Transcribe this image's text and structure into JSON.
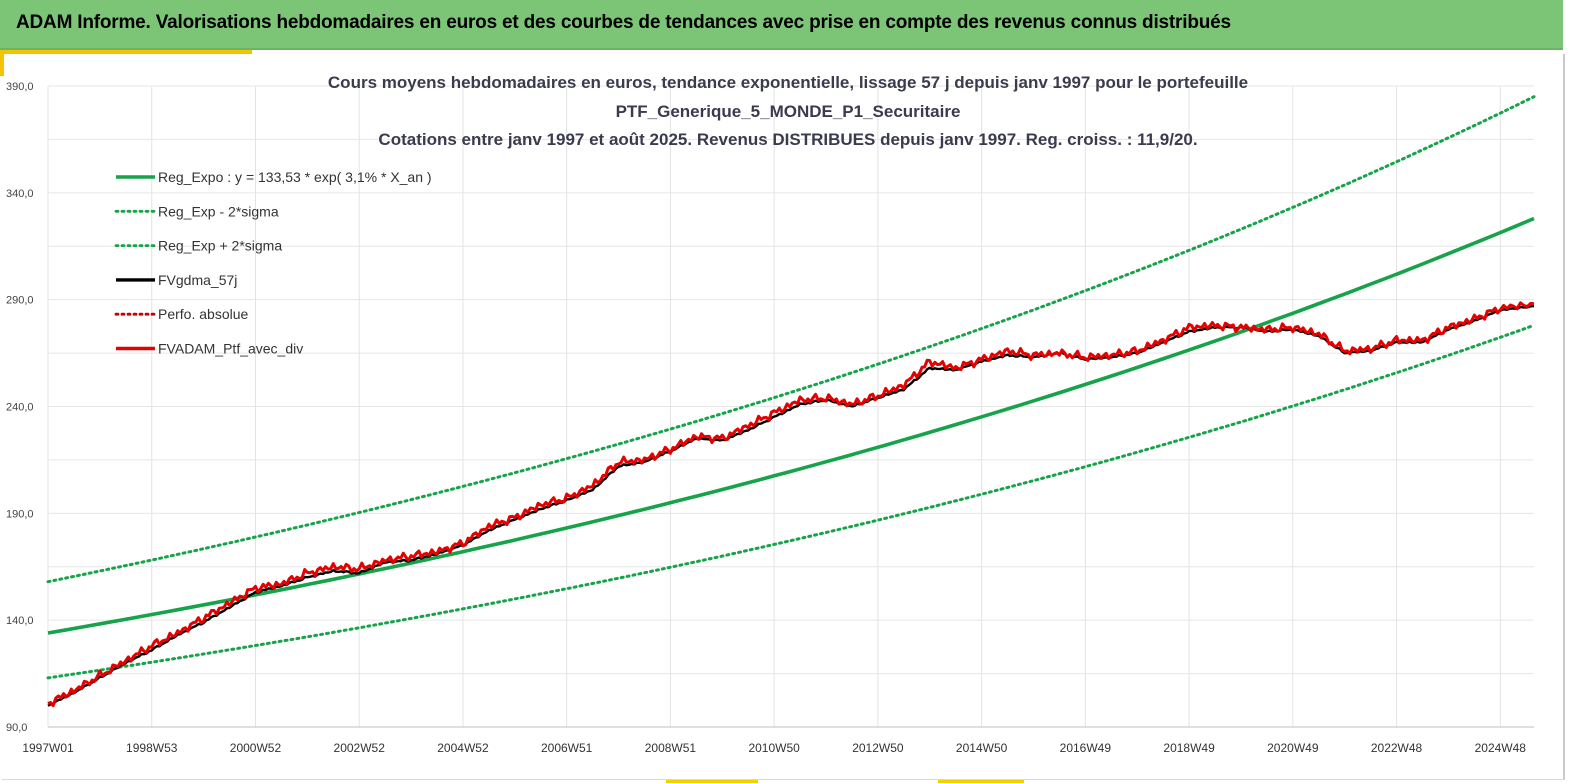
{
  "banner": {
    "title": "ADAM Informe. Valorisations hebdomadaires en euros et des courbes de tendances avec prise en compte des revenus connus distribués"
  },
  "colors": {
    "banner_bg": "#7cc576",
    "accent": "#f5c400",
    "trend": "#16a34a",
    "fv": "#000000",
    "perf": "#cc0000",
    "ptf": "#e60000"
  },
  "chart_data": {
    "type": "line",
    "title_lines": [
      "Cours moyens hebdomadaires  en euros, tendance exponentielle, lissage 57 j depuis janv 1997 pour le portefeuille",
      "PTF_Generique_5_MONDE_P1_Securitaire",
      "Cotations  entre janv 1997 et août 2025. Revenus DISTRIBUES depuis janv 1997. Reg. croiss. : 11,9/20."
    ],
    "x_tick_labels": [
      "1997W01",
      "1998W53",
      "2000W52",
      "2002W52",
      "2004W52",
      "2006W51",
      "2008W51",
      "2010W50",
      "2012W50",
      "2014W50",
      "2016W49",
      "2018W49",
      "2020W49",
      "2022W48",
      "2024W48"
    ],
    "x_tick_years": [
      1997.0,
      1999.0,
      2001.0,
      2003.0,
      2005.0,
      2007.0,
      2009.0,
      2011.0,
      2013.0,
      2015.0,
      2017.0,
      2019.0,
      2021.0,
      2023.0,
      2025.0
    ],
    "xlim": [
      1997.0,
      2025.65
    ],
    "y_tick_labels": [
      "90,0",
      "140,0",
      "190,0",
      "240,0",
      "290,0",
      "340,0",
      "390,0"
    ],
    "y_ticks": [
      90,
      140,
      190,
      240,
      290,
      340,
      390
    ],
    "ylim": [
      90,
      390
    ],
    "grid": true,
    "legend_position": "top-left",
    "legend": [
      {
        "label": "Reg_Expo : y = 133,53 * exp( 3,1% *  X_an )",
        "color": "#16a34a",
        "style": "solid"
      },
      {
        "label": "Reg_Exp - 2*sigma",
        "color": "#16a34a",
        "style": "dotted"
      },
      {
        "label": "Reg_Exp + 2*sigma",
        "color": "#16a34a",
        "style": "dotted"
      },
      {
        "label": "FVgdma_57j",
        "color": "#000000",
        "style": "solid"
      },
      {
        "label": "Perfo. absolue",
        "color": "#cc0000",
        "style": "dotted"
      },
      {
        "label": "FVADAM_Ptf_avec_div",
        "color": "#e60000",
        "style": "solid"
      }
    ],
    "series": [
      {
        "name": "Reg_Expo : y = 133,53 * exp( 3,1% *  X_an )",
        "x": [
          1997.0,
          2001.0,
          2005.0,
          2009.0,
          2013.0,
          2017.0,
          2021.0,
          2025.65
        ],
        "values": [
          134,
          151,
          170,
          193,
          219,
          248,
          287,
          328
        ]
      },
      {
        "name": "Reg_Exp - 2*sigma",
        "x": [
          1997.0,
          2001.0,
          2005.0,
          2009.0,
          2013.0,
          2017.0,
          2021.0,
          2025.65
        ],
        "values": [
          113,
          127,
          143,
          163,
          186,
          212,
          241,
          278
        ]
      },
      {
        "name": "Reg_Exp + 2*sigma",
        "x": [
          1997.0,
          2001.0,
          2005.0,
          2009.0,
          2013.0,
          2017.0,
          2021.0,
          2025.65
        ],
        "values": [
          158,
          178,
          200,
          226,
          257,
          295,
          336,
          385
        ]
      },
      {
        "name": "FVgdma_57j",
        "x": [
          1997.0,
          1997.5,
          1998.0,
          1998.5,
          1999.0,
          1999.5,
          2000.0,
          2000.5,
          2001.0,
          2001.5,
          2002.0,
          2002.5,
          2003.0,
          2003.5,
          2004.0,
          2004.5,
          2005.0,
          2005.5,
          2006.0,
          2006.5,
          2007.0,
          2007.5,
          2008.0,
          2008.5,
          2009.0,
          2009.5,
          2010.0,
          2010.5,
          2011.0,
          2011.5,
          2012.0,
          2012.5,
          2013.0,
          2013.5,
          2014.0,
          2014.5,
          2015.0,
          2015.5,
          2016.0,
          2016.5,
          2017.0,
          2017.5,
          2018.0,
          2018.5,
          2019.0,
          2019.5,
          2020.0,
          2020.5,
          2021.0,
          2021.5,
          2022.0,
          2022.5,
          2023.0,
          2023.5,
          2024.0,
          2024.5,
          2025.0,
          2025.65
        ],
        "values": [
          100,
          106,
          113,
          120,
          126,
          133,
          139,
          146,
          153,
          156,
          160,
          163,
          162,
          167,
          168,
          171,
          175,
          182,
          187,
          192,
          196,
          201,
          212,
          214,
          219,
          225,
          224,
          229,
          235,
          241,
          243,
          240,
          244,
          248,
          258,
          257,
          261,
          264,
          263,
          265,
          262,
          263,
          265,
          270,
          275,
          277,
          277,
          275,
          276,
          273,
          265,
          266,
          270,
          270,
          276,
          280,
          285,
          287
        ]
      },
      {
        "name": "Perfo. absolue",
        "x": [
          1997.0,
          1997.5,
          1998.0,
          1998.5,
          1999.0,
          1999.5,
          2000.0,
          2000.5,
          2001.0,
          2001.5,
          2002.0,
          2002.5,
          2003.0,
          2003.5,
          2004.0,
          2004.5,
          2005.0,
          2005.5,
          2006.0,
          2006.5,
          2007.0,
          2007.5,
          2008.0,
          2008.5,
          2009.0,
          2009.5,
          2010.0,
          2010.5,
          2011.0,
          2011.5,
          2012.0,
          2012.5,
          2013.0,
          2013.5,
          2014.0,
          2014.5,
          2015.0,
          2015.5,
          2016.0,
          2016.5,
          2017.0,
          2017.5,
          2018.0,
          2018.5,
          2019.0,
          2019.5,
          2020.0,
          2020.5,
          2021.0,
          2021.5,
          2022.0,
          2022.5,
          2023.0,
          2023.5,
          2024.0,
          2024.5,
          2025.0,
          2025.65
        ],
        "values": [
          101,
          107,
          114,
          121,
          128,
          134,
          141,
          148,
          155,
          157,
          162,
          165,
          164,
          168,
          170,
          172,
          176,
          184,
          188,
          194,
          197,
          203,
          214,
          215,
          220,
          226,
          225,
          231,
          237,
          243,
          244,
          241,
          245,
          250,
          261,
          258,
          262,
          266,
          264,
          265,
          263,
          264,
          266,
          271,
          277,
          278,
          277,
          276,
          277,
          274,
          266,
          267,
          271,
          271,
          277,
          281,
          286,
          288
        ]
      },
      {
        "name": "FVADAM_Ptf_avec_div",
        "x": [
          1997.0,
          1997.5,
          1998.0,
          1998.5,
          1999.0,
          1999.5,
          2000.0,
          2000.5,
          2001.0,
          2001.5,
          2002.0,
          2002.5,
          2003.0,
          2003.5,
          2004.0,
          2004.5,
          2005.0,
          2005.5,
          2006.0,
          2006.5,
          2007.0,
          2007.5,
          2008.0,
          2008.5,
          2009.0,
          2009.5,
          2010.0,
          2010.5,
          2011.0,
          2011.5,
          2012.0,
          2012.5,
          2013.0,
          2013.5,
          2014.0,
          2014.5,
          2015.0,
          2015.5,
          2016.0,
          2016.5,
          2017.0,
          2017.5,
          2018.0,
          2018.5,
          2019.0,
          2019.5,
          2020.0,
          2020.5,
          2021.0,
          2021.5,
          2022.0,
          2022.5,
          2023.0,
          2023.5,
          2024.0,
          2024.5,
          2025.0,
          2025.65
        ],
        "values": [
          101,
          107,
          114,
          121,
          128,
          134,
          141,
          148,
          155,
          157,
          162,
          165,
          164,
          168,
          170,
          172,
          176,
          184,
          188,
          194,
          197,
          203,
          214,
          215,
          220,
          226,
          225,
          231,
          237,
          243,
          244,
          241,
          245,
          250,
          261,
          258,
          262,
          266,
          264,
          265,
          263,
          264,
          266,
          271,
          277,
          278,
          277,
          276,
          277,
          274,
          266,
          267,
          271,
          271,
          277,
          281,
          286,
          288
        ]
      }
    ]
  }
}
